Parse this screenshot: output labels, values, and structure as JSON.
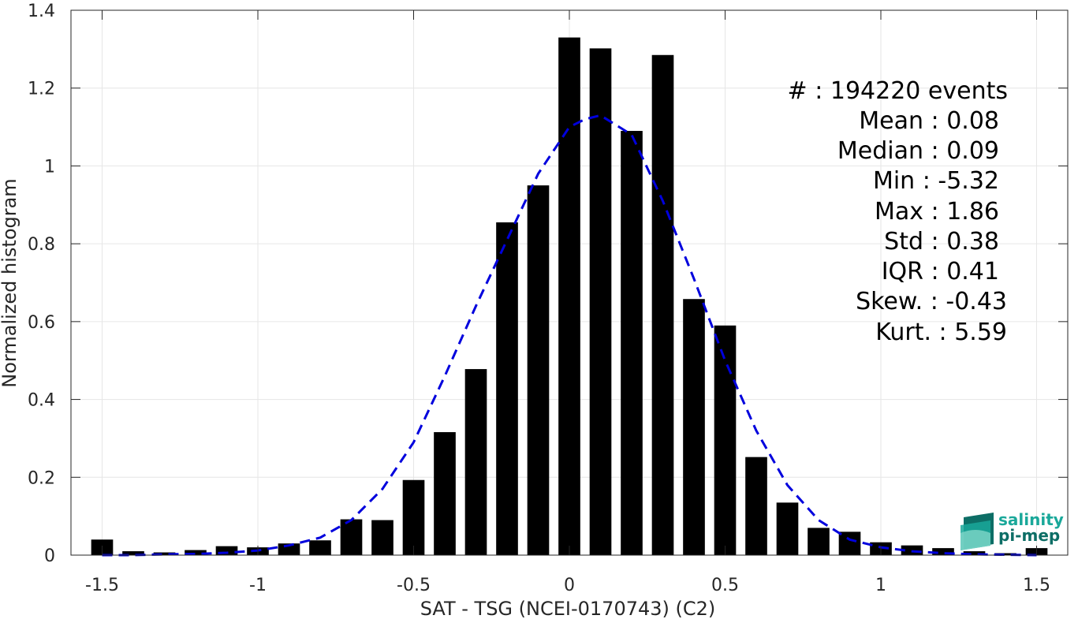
{
  "chart_data": {
    "type": "bar",
    "xlabel": "SAT - TSG (NCEI-0170743) (C2)",
    "ylabel": "Normalized histogram",
    "xlim": [
      -1.6,
      1.6
    ],
    "ylim": [
      0,
      1.4
    ],
    "grid": true,
    "xticks": [
      -1.5,
      -1,
      -0.5,
      0,
      0.5,
      1,
      1.5
    ],
    "xtick_labels": [
      "-1.5",
      "-1",
      "-0.5",
      "0",
      "0.5",
      "1",
      "1.5"
    ],
    "yticks": [
      0,
      0.2,
      0.4,
      0.6,
      0.8,
      1,
      1.2,
      1.4
    ],
    "ytick_labels": [
      "0",
      "0.2",
      "0.4",
      "0.6",
      "0.8",
      "1",
      "1.2",
      "1.4"
    ],
    "bar_width": 0.07,
    "x": [
      -1.5,
      -1.4,
      -1.3,
      -1.2,
      -1.1,
      -1.0,
      -0.9,
      -0.8,
      -0.7,
      -0.6,
      -0.5,
      -0.4,
      -0.3,
      -0.2,
      -0.1,
      0.0,
      0.1,
      0.2,
      0.3,
      0.4,
      0.5,
      0.6,
      0.7,
      0.8,
      0.9,
      1.0,
      1.1,
      1.2,
      1.3,
      1.4,
      1.5
    ],
    "values": [
      0.04,
      0.01,
      0.007,
      0.013,
      0.023,
      0.02,
      0.03,
      0.038,
      0.092,
      0.09,
      0.193,
      0.316,
      0.478,
      0.855,
      0.95,
      1.33,
      1.302,
      1.09,
      1.285,
      0.658,
      0.59,
      0.252,
      0.135,
      0.07,
      0.06,
      0.033,
      0.025,
      0.018,
      0.01,
      0.005,
      0.018
    ],
    "fit": {
      "style": "dashed",
      "color": "#0000dd",
      "x": [
        -1.5,
        -1.4,
        -1.3,
        -1.2,
        -1.1,
        -1.0,
        -0.9,
        -0.8,
        -0.7,
        -0.6,
        -0.5,
        -0.4,
        -0.3,
        -0.2,
        -0.1,
        0.0,
        0.05,
        0.1,
        0.2,
        0.3,
        0.4,
        0.5,
        0.6,
        0.7,
        0.8,
        0.9,
        1.0,
        1.1,
        1.2,
        1.3,
        1.4,
        1.5
      ],
      "y": [
        0.0,
        0.0,
        0.002,
        0.003,
        0.006,
        0.012,
        0.025,
        0.045,
        0.09,
        0.17,
        0.29,
        0.46,
        0.64,
        0.81,
        0.98,
        1.1,
        1.12,
        1.13,
        1.08,
        0.91,
        0.71,
        0.5,
        0.32,
        0.18,
        0.09,
        0.04,
        0.02,
        0.01,
        0.005,
        0.002,
        0.001,
        0.0
      ]
    },
    "stats": {
      "count": "#  : 194220 events",
      "mean": "Mean : 0.08",
      "median": "Median : 0.09",
      "min": "Min : -5.32",
      "max": "Max : 1.86",
      "std": "Std : 0.38",
      "iqr": "IQR : 0.41",
      "skew": "Skew. : -0.43",
      "kurt": "Kurt. : 5.59"
    },
    "colors": {
      "bars": "#000000",
      "fit": "#0000dd",
      "grid": "#e6e6e6",
      "axis": "#262626",
      "logo_salinity": "#1aa89a",
      "logo_pimep": "#0d6e66"
    }
  },
  "logo": {
    "line1": "salinity",
    "line2": "pi-mep"
  }
}
